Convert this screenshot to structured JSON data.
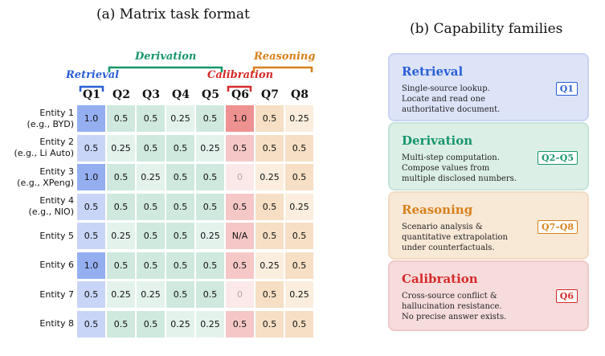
{
  "left_panel": {
    "title": "(a) Matrix task format",
    "families": {
      "retrieval": "Retrieval",
      "derivation": "Derivation",
      "calibration": "Calibration",
      "reasoning": "Reasoning"
    },
    "columns": [
      "Q1",
      "Q2",
      "Q3",
      "Q4",
      "Q5",
      "Q6",
      "Q7",
      "Q8"
    ],
    "rows": [
      {
        "label": [
          "Entity 1",
          "(e.g., BYD)"
        ],
        "values": [
          "1.0",
          "0.5",
          "0.5",
          "0.25",
          "0.5",
          "1.0",
          "0.5",
          "0.25"
        ]
      },
      {
        "label": [
          "Entity 2",
          "(e.g., Li Auto)"
        ],
        "values": [
          "0.5",
          "0.25",
          "0.5",
          "0.5",
          "0.25",
          "0.5",
          "0.5",
          "0.5"
        ]
      },
      {
        "label": [
          "Entity 3",
          "(e.g., XPeng)"
        ],
        "values": [
          "1.0",
          "0.5",
          "0.25",
          "0.5",
          "0.5",
          "0",
          "0.25",
          "0.5"
        ]
      },
      {
        "label": [
          "Entity 4",
          "(e.g., NIO)"
        ],
        "values": [
          "0.5",
          "0.5",
          "0.5",
          "0.5",
          "0.5",
          "0.5",
          "0.5",
          "0.25"
        ]
      },
      {
        "label": [
          "Entity 5"
        ],
        "values": [
          "0.5",
          "0.25",
          "0.5",
          "0.5",
          "0.25",
          "N/A",
          "0.5",
          "0.5"
        ]
      },
      {
        "label": [
          "Entity 6"
        ],
        "values": [
          "1.0",
          "0.5",
          "0.5",
          "0.5",
          "0.5",
          "0.5",
          "0.25",
          "0.5"
        ]
      },
      {
        "label": [
          "Entity 7"
        ],
        "values": [
          "0.5",
          "0.25",
          "0.25",
          "0.5",
          "0.5",
          "0",
          "0.5",
          "0.25"
        ]
      },
      {
        "label": [
          "Entity 8"
        ],
        "values": [
          "0.5",
          "0.5",
          "0.5",
          "0.25",
          "0.25",
          "0.5",
          "0.5",
          "0.5"
        ]
      }
    ]
  },
  "right_panel": {
    "title": "(b) Capability families",
    "cards": [
      {
        "title": "Retrieval",
        "badge": "Q1",
        "desc": [
          "Single-source lookup.",
          "Locate and read one",
          "authoritative document."
        ]
      },
      {
        "title": "Derivation",
        "badge": "Q2–Q5",
        "desc": [
          "Multi-step computation.",
          "Compose values from",
          "multiple disclosed numbers."
        ]
      },
      {
        "title": "Reasoning",
        "badge": "Q7–Q8",
        "desc": [
          "Scenario analysis &",
          "quantitative extrapolation",
          "under counterfactuals."
        ]
      },
      {
        "title": "Calibration",
        "badge": "Q6",
        "desc": [
          "Cross-source conflict &",
          "hallucination resistance.",
          "No precise answer exists."
        ]
      }
    ]
  },
  "colors": {
    "retrieval": "#2a5fd6",
    "derivation": "#16966b",
    "calibration": "#d62a2a",
    "reasoning": "#d8811a",
    "q1_strong": "#95aef0",
    "q1_light": "#c8d5f6",
    "q6_strong": "#ee9191",
    "q6_light": "#f6c7c7",
    "q6_faint": "#fbe9e9"
  }
}
